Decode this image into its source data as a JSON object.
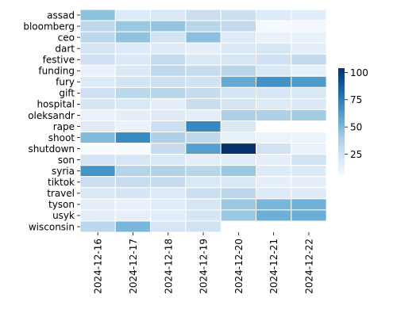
{
  "chart_data": {
    "type": "heatmap",
    "rows": [
      "assad",
      "bloomberg",
      "ceo",
      "dart",
      "festive",
      "funding",
      "fury",
      "gift",
      "hospital",
      "oleksandr",
      "rape",
      "shoot",
      "shutdown",
      "son",
      "syria",
      "tiktok",
      "travel",
      "tyson",
      "usyk",
      "wisconsin"
    ],
    "columns": [
      "2024-12-16",
      "2024-12-17",
      "2024-12-18",
      "2024-12-19",
      "2024-12-20",
      "2024-12-21",
      "2024-12-22"
    ],
    "values": [
      [
        46,
        18,
        20,
        27,
        26,
        18,
        16
      ],
      [
        32,
        43,
        44,
        34,
        31,
        6,
        7
      ],
      [
        33,
        45,
        24,
        47,
        18,
        12,
        13
      ],
      [
        22,
        18,
        17,
        14,
        19,
        21,
        14
      ],
      [
        25,
        19,
        30,
        19,
        21,
        25,
        31
      ],
      [
        12,
        19,
        32,
        30,
        34,
        20,
        14
      ],
      [
        18,
        23,
        26,
        24,
        56,
        67,
        63
      ],
      [
        25,
        33,
        34,
        29,
        22,
        21,
        20
      ],
      [
        22,
        20,
        14,
        28,
        22,
        18,
        19
      ],
      [
        12,
        14,
        17,
        15,
        37,
        37,
        41
      ],
      [
        17,
        12,
        26,
        71,
        19,
        null,
        null
      ],
      [
        49,
        70,
        37,
        32,
        13,
        11,
        11
      ],
      [
        5,
        5,
        29,
        61,
        104,
        24,
        12
      ],
      [
        23,
        21,
        20,
        15,
        16,
        14,
        24
      ],
      [
        66,
        35,
        36,
        34,
        43,
        18,
        19
      ],
      [
        27,
        28,
        29,
        20,
        19,
        14,
        14
      ],
      [
        20,
        22,
        18,
        27,
        33,
        18,
        17
      ],
      [
        14,
        13,
        16,
        21,
        43,
        51,
        53
      ],
      [
        15,
        14,
        16,
        21,
        43,
        54,
        55
      ],
      [
        33,
        51,
        21,
        24,
        null,
        null,
        null
      ]
    ],
    "colorbar": {
      "ticks": [
        25,
        50,
        75,
        100
      ],
      "min": 5,
      "max": 104,
      "colormap": [
        "#f7fbff",
        "#deebf7",
        "#c6dbef",
        "#9ecae1",
        "#6baed6",
        "#4292c6",
        "#2171b5",
        "#08519c",
        "#08306b"
      ]
    },
    "grid": true,
    "legend": "right"
  }
}
